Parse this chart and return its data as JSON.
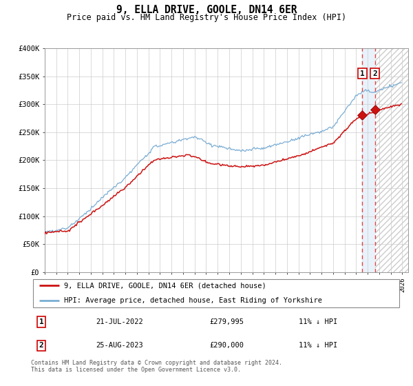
{
  "title": "9, ELLA DRIVE, GOOLE, DN14 6ER",
  "subtitle": "Price paid vs. HM Land Registry's House Price Index (HPI)",
  "legend_line1": "9, ELLA DRIVE, GOOLE, DN14 6ER (detached house)",
  "legend_line2": "HPI: Average price, detached house, East Riding of Yorkshire",
  "transaction1_date": "21-JUL-2022",
  "transaction1_price": "£279,995",
  "transaction1_hpi": "11% ↓ HPI",
  "transaction2_date": "25-AUG-2023",
  "transaction2_price": "£290,000",
  "transaction2_hpi": "11% ↓ HPI",
  "footer": "Contains HM Land Registry data © Crown copyright and database right 2024.\nThis data is licensed under the Open Government Licence v3.0.",
  "ylim": [
    0,
    400000
  ],
  "ytick_vals": [
    0,
    50000,
    100000,
    150000,
    200000,
    250000,
    300000,
    350000,
    400000
  ],
  "ytick_labels": [
    "£0",
    "£50K",
    "£100K",
    "£150K",
    "£200K",
    "£250K",
    "£300K",
    "£350K",
    "£400K"
  ],
  "hpi_color": "#7aadd4",
  "price_color": "#cc1111",
  "dashed_color": "#dd4444",
  "shade_between_color": "#ddeeff",
  "hatch_color": "#cccccc",
  "grid_color": "#cccccc"
}
